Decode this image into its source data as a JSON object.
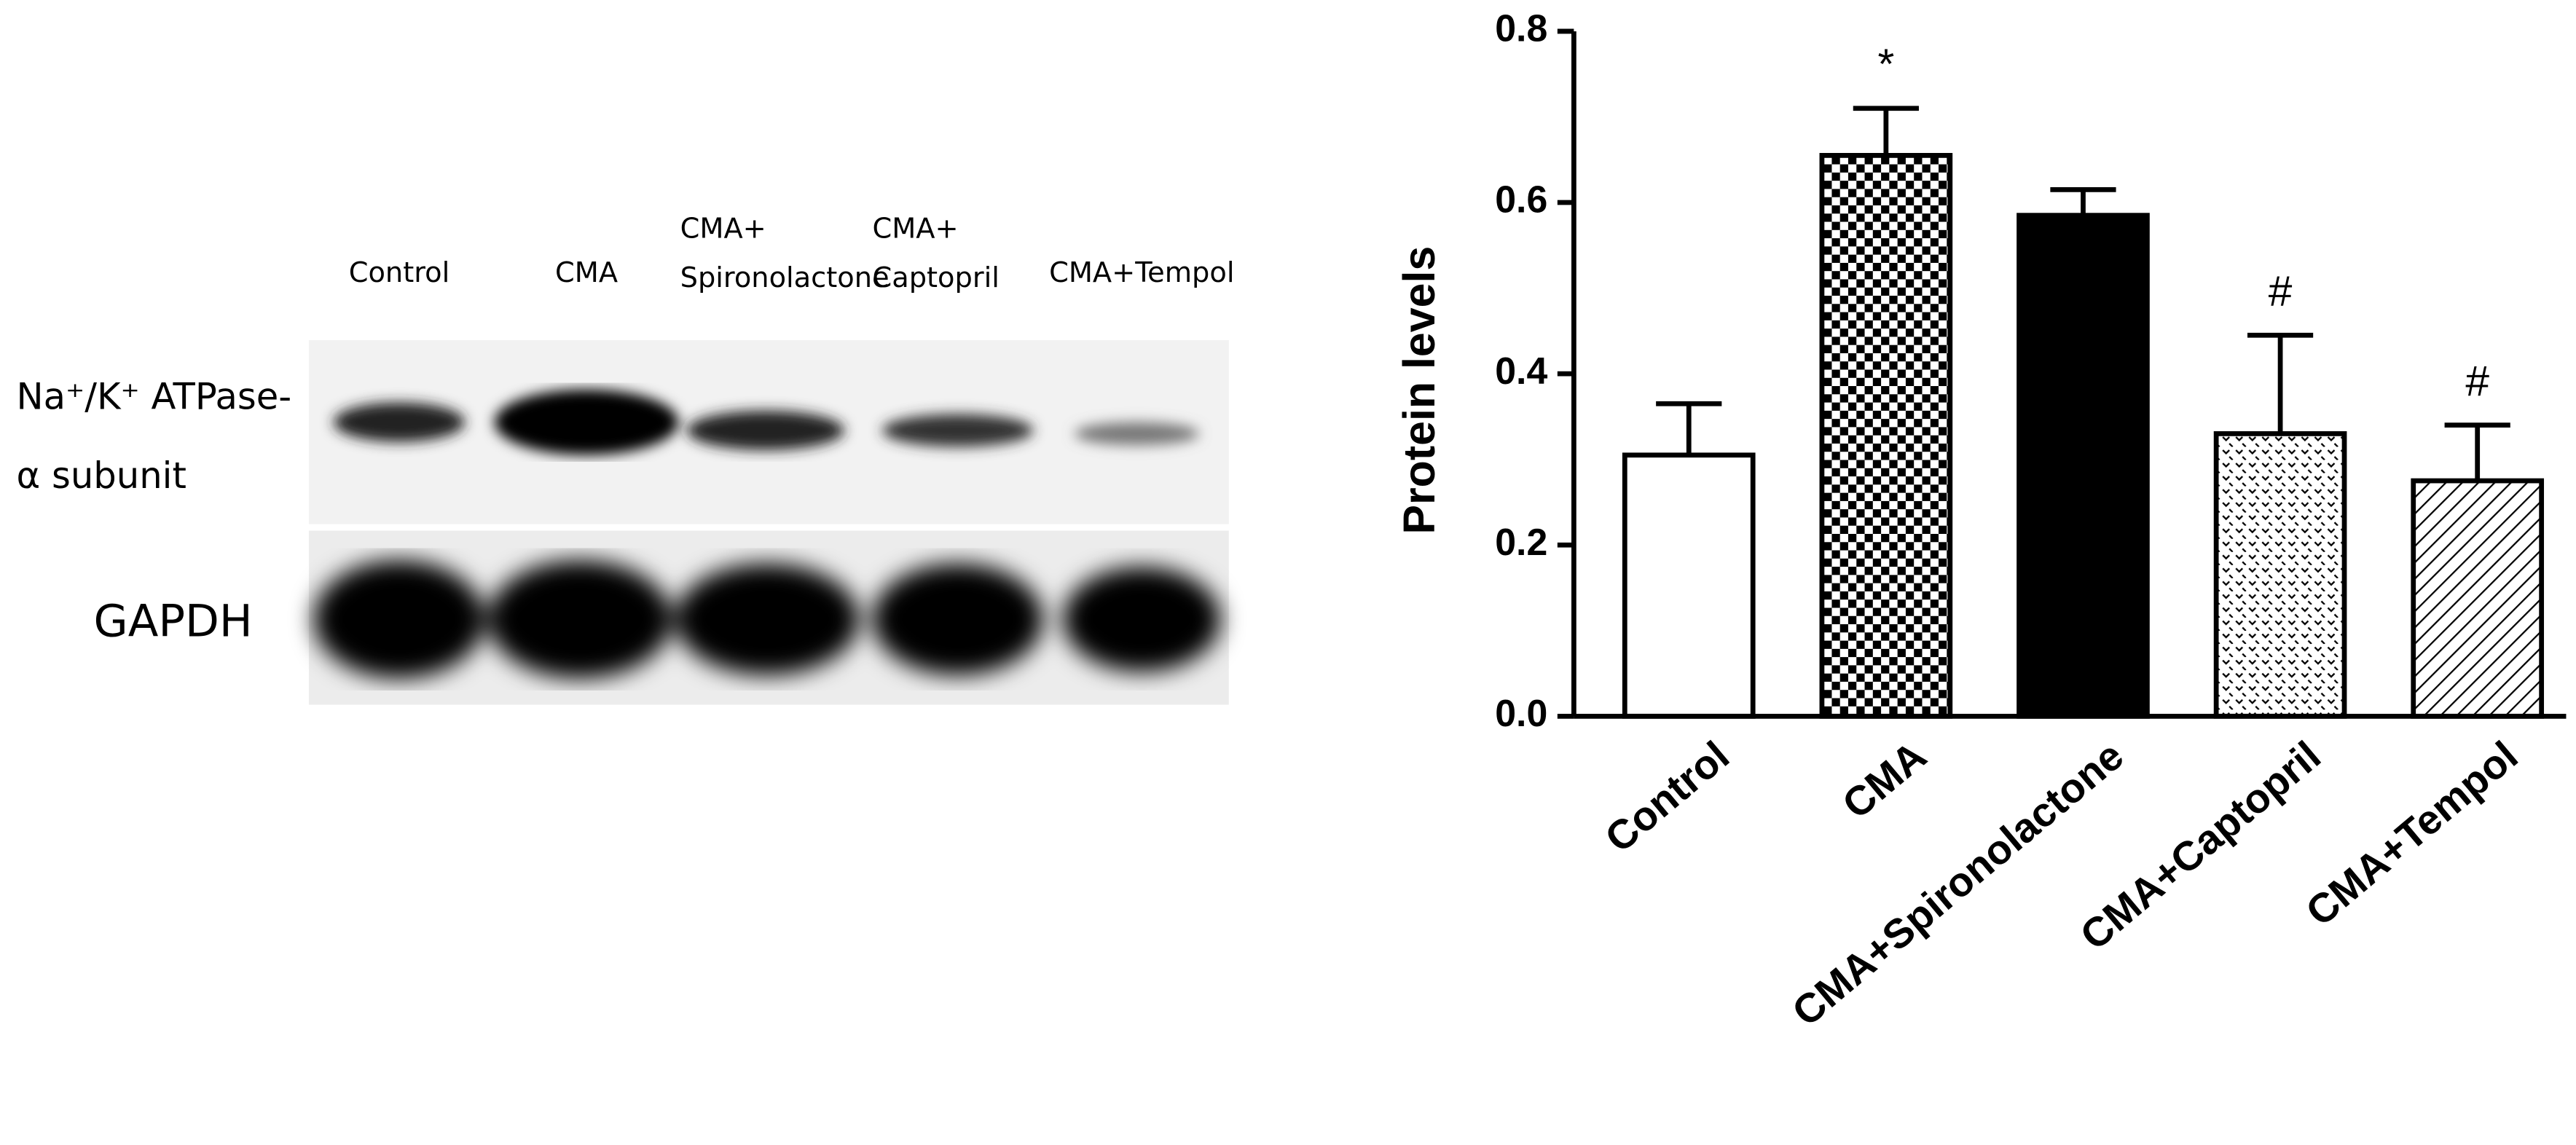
{
  "chart_data": {
    "type": "bar",
    "y_label": "Protein levels",
    "categories": [
      "Control",
      "CMA",
      "CMA+Spironolactone",
      "CMA+Captopril",
      "CMA+Tempol"
    ],
    "values": [
      0.305,
      0.655,
      0.585,
      0.33,
      0.275
    ],
    "errors": [
      0.06,
      0.055,
      0.03,
      0.115,
      0.065
    ],
    "significance": [
      null,
      "*",
      null,
      "#",
      "#"
    ],
    "patterns": [
      "none",
      "checker",
      "solid",
      "dots",
      "hatch"
    ],
    "color": "#000000",
    "ylim": [
      0,
      0.8
    ],
    "yticks": [
      {
        "value": 0,
        "label": "0.0"
      },
      0.2,
      0.4,
      0.6,
      0.8
    ]
  },
  "blot": {
    "lanes": [
      [
        "Control"
      ],
      [
        "CMA"
      ],
      [
        "CMA+",
        "Spironolactone"
      ],
      [
        "CMA+",
        "Captopril"
      ],
      [
        "CMA+Tempol"
      ]
    ],
    "rows": [
      [
        "Na⁺/K⁺ ATPase-",
        "α subunit"
      ],
      [
        "GAPDH"
      ]
    ]
  }
}
